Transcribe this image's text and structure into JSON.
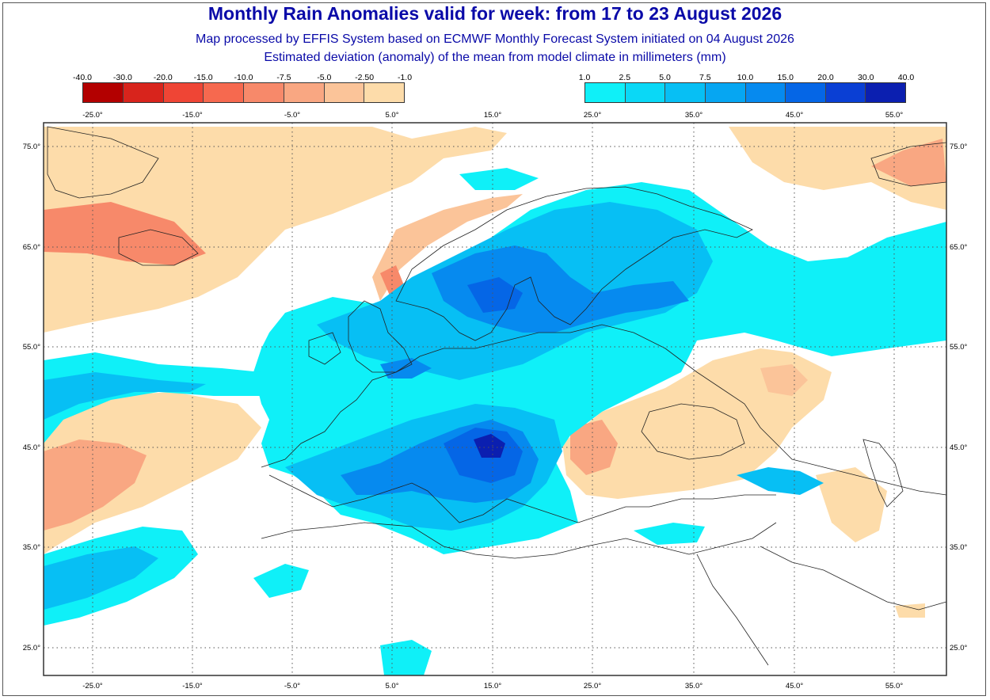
{
  "header": {
    "title": "Monthly Rain Anomalies valid for week: from 17 to 23 August 2026",
    "subtitle_1": "Map processed by EFFIS System based on ECMWF Monthly Forecast System initiated on 04 August 2026",
    "subtitle_2": "Estimated deviation (anomaly) of the mean from model climate in millimeters (mm)"
  },
  "legend_dry": {
    "ticks": [
      "-40.0",
      "-30.0",
      "-20.0",
      "-15.0",
      "-10.0",
      "-7.5",
      "-5.0",
      "-2.50",
      "-1.0"
    ],
    "colors": [
      "#b30000",
      "#d8241c",
      "#ef4535",
      "#f6694f",
      "#f7896a",
      "#f9a782",
      "#fbc499",
      "#fddcaa"
    ]
  },
  "legend_wet": {
    "ticks": [
      "1.0",
      "2.5",
      "5.0",
      "7.5",
      "10.0",
      "15.0",
      "20.0",
      "30.0",
      "40.0"
    ],
    "colors": [
      "#0ff0f8",
      "#0ad8f6",
      "#07bff4",
      "#06a6f2",
      "#068aef",
      "#0566e6",
      "#0a3fd4",
      "#0b1fb0"
    ]
  },
  "map": {
    "lon_labels": [
      "-25.0°",
      "-15.0°",
      "-5.0°",
      "5.0°",
      "15.0°",
      "25.0°",
      "35.0°",
      "45.0°",
      "55.0°"
    ],
    "lat_labels": [
      "75.0°",
      "65.0°",
      "55.0°",
      "45.0°",
      "35.0°",
      "25.0°"
    ],
    "colors": {
      "background": "#ffffff",
      "land_lines": "#222222",
      "grid": "#555555",
      "dry_light": "#fddcaa",
      "dry_mid": "#fbc499",
      "dry_strong": "#f7896a",
      "dry_extreme": "#ef4535",
      "wet_light": "#0ff0f8",
      "wet_mid": "#07bff4",
      "wet_strong": "#068aef",
      "wet_deep": "#0566e6",
      "wet_extreme": "#0b1fb0"
    }
  }
}
